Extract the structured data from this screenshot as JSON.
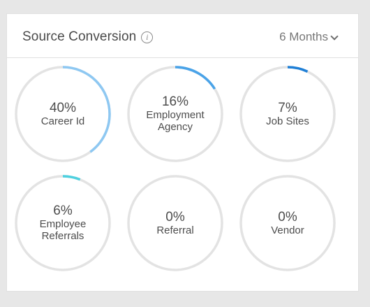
{
  "card": {
    "title": "Source Conversion",
    "info_glyph": "i",
    "period_label": "6 Months"
  },
  "sources": [
    {
      "percent": "40%",
      "value": 40,
      "label": "Career Id",
      "color": "#8ec8f2"
    },
    {
      "percent": "16%",
      "value": 16,
      "label": "Employment Agency",
      "color": "#4aa3e8"
    },
    {
      "percent": "7%",
      "value": 7,
      "label": "Job Sites",
      "color": "#1f7fd6"
    },
    {
      "percent": "6%",
      "value": 6,
      "label": "Employee Referrals",
      "color": "#4fd0df"
    },
    {
      "percent": "0%",
      "value": 0,
      "label": "Referral",
      "color": "#8ec8f2"
    },
    {
      "percent": "0%",
      "value": 0,
      "label": "Vendor",
      "color": "#8ec8f2"
    }
  ],
  "track_color": "#e3e3e3"
}
